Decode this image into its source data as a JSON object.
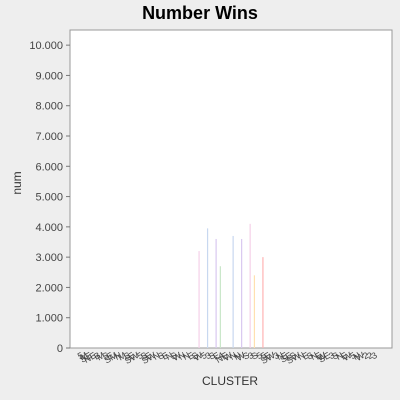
{
  "chart_data": {
    "type": "bar",
    "title": "Number Wins",
    "xlabel": "CLUSTER",
    "ylabel": "num",
    "ylim": [
      0,
      10500
    ],
    "yticks": [
      "0",
      "1.000",
      "2.000",
      "3.000",
      "4.000",
      "5.000",
      "6.000",
      "7.000",
      "8.000",
      "9.000",
      "10.000"
    ],
    "ytick_values": [
      0,
      1000,
      2000,
      3000,
      4000,
      5000,
      6000,
      7000,
      8000,
      9000,
      10000
    ],
    "grid": false,
    "legend": "none",
    "categories": [
      "5",
      "M",
      "SE",
      "NE",
      "B",
      "M",
      "S",
      "E",
      "SM",
      "N",
      "M",
      "S",
      "E",
      "SW",
      "5",
      "S",
      "E",
      "SW",
      "N",
      "S",
      "E",
      "N",
      "S",
      "W",
      "N",
      "N",
      "E",
      "S",
      "W",
      "5",
      "3",
      "S",
      "E",
      "4",
      "NE",
      "W",
      "N",
      "N",
      "W",
      "S",
      "3",
      "S",
      "5",
      "5",
      "E",
      "SW",
      "3",
      "N",
      "E",
      "SE",
      "S",
      "SW",
      "N",
      "E",
      "S",
      "N",
      "E",
      "W",
      "SE",
      "3",
      "S",
      "N",
      "E",
      "W",
      "5",
      "N",
      "W",
      "2",
      "2",
      "3"
    ],
    "values": [
      0,
      0,
      0,
      0,
      0,
      0,
      0,
      0,
      0,
      0,
      0,
      0,
      0,
      0,
      0,
      0,
      0,
      0,
      0,
      0,
      0,
      0,
      0,
      0,
      0,
      0,
      0,
      3200,
      0,
      3950,
      0,
      3600,
      2700,
      0,
      0,
      3700,
      0,
      3600,
      0,
      4100,
      2400,
      0,
      3000,
      0,
      0,
      0,
      0,
      0,
      0,
      0,
      0,
      0,
      0,
      0,
      0,
      0,
      0,
      0,
      0,
      0,
      0,
      0,
      0,
      0,
      0,
      0,
      0,
      0,
      0,
      0
    ],
    "bar_colors": [
      "#ffb3b3",
      "#d9c8f0",
      "#c8e6c8",
      "#f5d0e8",
      "#ffe0b0",
      "#c8d8f0"
    ]
  }
}
